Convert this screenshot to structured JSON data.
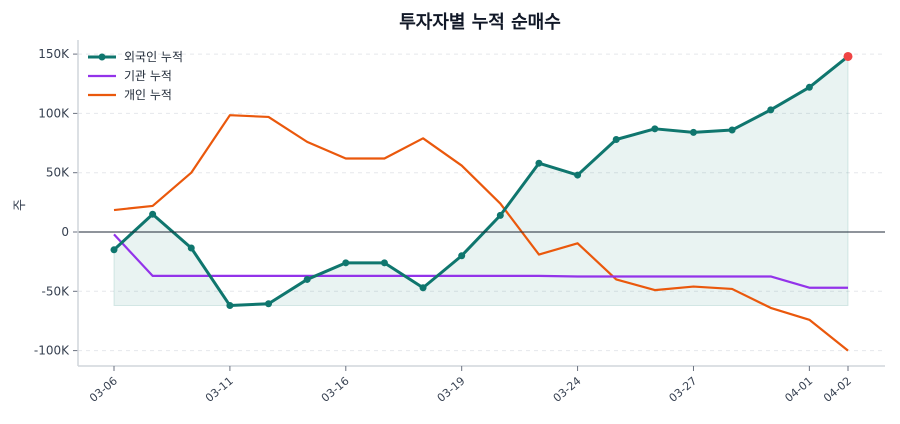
{
  "chart_data": {
    "type": "line",
    "title": "투자자별 누적 순매수",
    "ylabel": "주",
    "xlabel": "",
    "ylim": [
      -110000,
      160000
    ],
    "yticks": [
      -100000,
      -50000,
      0,
      50000,
      100000,
      150000
    ],
    "ytick_labels": [
      "-100K",
      "-50K",
      "0",
      "50K",
      "100K",
      "150K"
    ],
    "x_tick_labels": [
      {
        "index": 0,
        "label": "03-06"
      },
      {
        "index": 3,
        "label": "03-11"
      },
      {
        "index": 6,
        "label": "03-16"
      },
      {
        "index": 9,
        "label": "03-19"
      },
      {
        "index": 12,
        "label": "03-24"
      },
      {
        "index": 15,
        "label": "03-27"
      },
      {
        "index": 18,
        "label": "04-01"
      },
      {
        "index": 19,
        "label": "04-02"
      }
    ],
    "grid": "horizontal-dashed",
    "legend": "top-left",
    "series": [
      {
        "name": "외국인 누적",
        "color": "#0f766e",
        "markers": true,
        "fill": true,
        "last_marker_color": "#ef4444",
        "values": [
          -15000,
          15000,
          -13500,
          -62000,
          -60500,
          -40000,
          -26000,
          -26000,
          -47000,
          -20000,
          14000,
          58000,
          48000,
          78000,
          87000,
          84000,
          86000,
          103000,
          122000,
          148000
        ]
      },
      {
        "name": "기관 누적",
        "color": "#9333ea",
        "markers": false,
        "values": [
          -2000,
          -37000,
          -37000,
          -37000,
          -37000,
          -37000,
          -37000,
          -37000,
          -37000,
          -37000,
          -37000,
          -37000,
          -37500,
          -37500,
          -37500,
          -37500,
          -37500,
          -37500,
          -47000,
          -47000
        ]
      },
      {
        "name": "개인 누적",
        "color": "#ea580c",
        "markers": false,
        "values": [
          18500,
          22000,
          50000,
          98500,
          97000,
          76000,
          62000,
          62000,
          79000,
          56000,
          24000,
          -19000,
          -9500,
          -40000,
          -49000,
          -46000,
          -48000,
          -64000,
          -74000,
          -100000
        ]
      }
    ]
  }
}
